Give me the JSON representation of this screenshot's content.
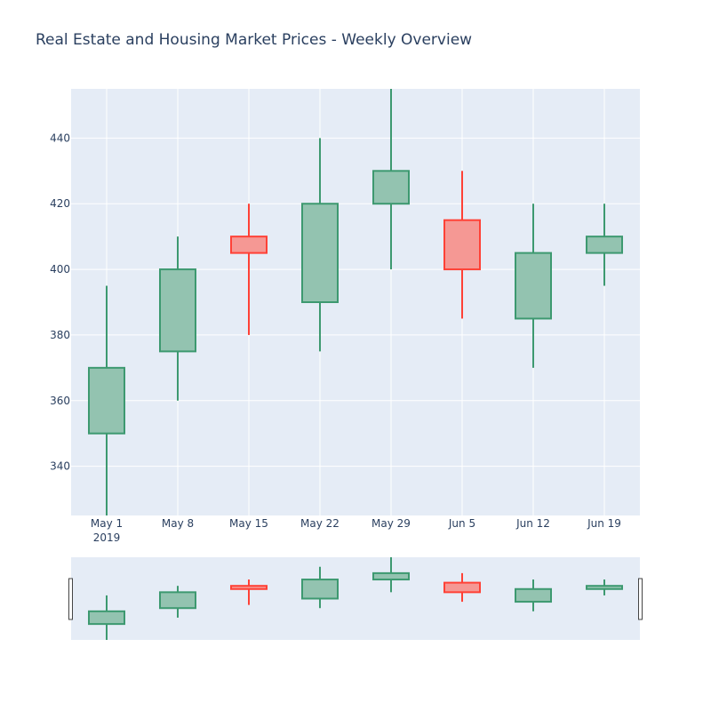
{
  "chart_data": {
    "type": "candlestick",
    "title": "Real Estate and Housing Market Prices - Weekly Overview",
    "x_tick_labels": [
      "May 1",
      "May 8",
      "May 15",
      "May 22",
      "May 29",
      "Jun 5",
      "Jun 12",
      "Jun 19"
    ],
    "x_year_label": "2019",
    "y_tick_labels": [
      "340",
      "360",
      "380",
      "400",
      "420",
      "440"
    ],
    "ylim": [
      325,
      455
    ],
    "candles": [
      {
        "date": "2019-05-01",
        "open": 350,
        "high": 395,
        "low": 325,
        "close": 370
      },
      {
        "date": "2019-05-08",
        "open": 375,
        "high": 410,
        "low": 360,
        "close": 400
      },
      {
        "date": "2019-05-15",
        "open": 410,
        "high": 420,
        "low": 380,
        "close": 405
      },
      {
        "date": "2019-05-22",
        "open": 390,
        "high": 440,
        "low": 375,
        "close": 420
      },
      {
        "date": "2019-05-29",
        "open": 420,
        "high": 455,
        "low": 400,
        "close": 430
      },
      {
        "date": "2019-06-05",
        "open": 415,
        "high": 430,
        "low": 385,
        "close": 400
      },
      {
        "date": "2019-06-12",
        "open": 385,
        "high": 420,
        "low": 370,
        "close": 405
      },
      {
        "date": "2019-06-19",
        "open": 405,
        "high": 420,
        "low": 395,
        "close": 410
      }
    ],
    "increasing_color": "#3d9970",
    "increasing_fill": "#93c3b0",
    "decreasing_color": "#ff4136",
    "decreasing_fill": "#f59894",
    "plot_background": "#e5ecf6",
    "grid": true,
    "range_slider": true
  }
}
